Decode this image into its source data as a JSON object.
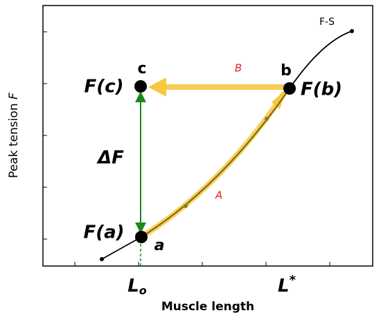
{
  "axes": {
    "y_label": "Peak tension",
    "y_label_symbol": "F",
    "x_label": "Muscle length",
    "x_ticks": [
      {
        "base": "L",
        "mark": "o"
      },
      {
        "base": "L",
        "mark": "*"
      }
    ]
  },
  "curve_label": "F-S",
  "points": [
    {
      "name": "a",
      "label": "F(a)"
    },
    {
      "name": "b",
      "label": "F(b)"
    },
    {
      "name": "c",
      "label": "F(c)"
    }
  ],
  "arrows": [
    {
      "name": "A"
    },
    {
      "name": "B"
    },
    {
      "name": "ΔF"
    }
  ]
}
